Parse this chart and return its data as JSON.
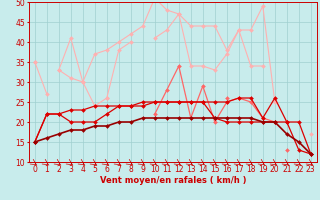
{
  "x": [
    0,
    1,
    2,
    3,
    4,
    5,
    6,
    7,
    8,
    9,
    10,
    11,
    12,
    13,
    14,
    15,
    16,
    17,
    18,
    19,
    20,
    21,
    22,
    23
  ],
  "series": [
    {
      "color": "#FFB0B0",
      "lw": 0.8,
      "ms": 2.0,
      "y": [
        35,
        27,
        null,
        null,
        null,
        null,
        null,
        null,
        null,
        null,
        null,
        null,
        null,
        null,
        null,
        null,
        null,
        null,
        null,
        null,
        null,
        null,
        null,
        null
      ]
    },
    {
      "color": "#FFB0B0",
      "lw": 0.8,
      "ms": 2.0,
      "y": [
        null,
        null,
        33,
        41,
        30,
        37,
        38,
        40,
        42,
        44,
        51,
        48,
        47,
        44,
        44,
        44,
        38,
        43,
        43,
        49,
        25,
        null,
        null,
        null
      ]
    },
    {
      "color": "#FFB0B0",
      "lw": 0.8,
      "ms": 2.0,
      "y": [
        null,
        null,
        33,
        31,
        30,
        24,
        26,
        null,
        null,
        null,
        null,
        null,
        null,
        null,
        null,
        null,
        null,
        null,
        null,
        null,
        null,
        null,
        null,
        null
      ]
    },
    {
      "color": "#FFB0B0",
      "lw": 0.8,
      "ms": 2.0,
      "y": [
        null,
        null,
        null,
        null,
        null,
        null,
        26,
        38,
        40,
        null,
        41,
        43,
        47,
        34,
        34,
        33,
        37,
        43,
        34,
        34,
        null,
        null,
        null,
        null
      ]
    },
    {
      "color": "#FFB0B0",
      "lw": 0.8,
      "ms": 2.0,
      "y": [
        35,
        null,
        null,
        null,
        null,
        null,
        null,
        null,
        null,
        null,
        null,
        null,
        null,
        null,
        null,
        null,
        null,
        null,
        null,
        null,
        null,
        null,
        null,
        17
      ]
    },
    {
      "color": "#FF6666",
      "lw": 0.9,
      "ms": 2.0,
      "y": [
        null,
        null,
        null,
        null,
        null,
        null,
        null,
        null,
        null,
        null,
        22,
        28,
        34,
        21,
        29,
        20,
        25,
        26,
        25,
        21,
        20,
        null,
        null,
        null
      ]
    },
    {
      "color": "#FF6666",
      "lw": 0.9,
      "ms": 2.0,
      "y": [
        null,
        null,
        null,
        null,
        null,
        null,
        null,
        null,
        null,
        null,
        null,
        null,
        null,
        null,
        null,
        null,
        26,
        null,
        null,
        null,
        null,
        13,
        null,
        null
      ]
    },
    {
      "color": "#DD0000",
      "lw": 0.9,
      "ms": 2.0,
      "y": [
        15,
        22,
        22,
        20,
        20,
        20,
        22,
        24,
        24,
        24,
        25,
        25,
        25,
        25,
        25,
        21,
        20,
        20,
        20,
        20,
        20,
        20,
        13,
        12
      ]
    },
    {
      "color": "#DD0000",
      "lw": 0.9,
      "ms": 2.0,
      "y": [
        15,
        22,
        22,
        23,
        23,
        24,
        24,
        24,
        24,
        25,
        25,
        25,
        25,
        25,
        25,
        25,
        25,
        26,
        26,
        21,
        26,
        20,
        20,
        12
      ]
    },
    {
      "color": "#990000",
      "lw": 1.2,
      "ms": 2.0,
      "y": [
        15,
        16,
        17,
        18,
        18,
        19,
        19,
        20,
        20,
        21,
        21,
        21,
        21,
        21,
        21,
        21,
        21,
        21,
        21,
        20,
        20,
        17,
        15,
        12
      ]
    }
  ],
  "ylim": [
    10,
    50
  ],
  "yticks": [
    10,
    15,
    20,
    25,
    30,
    35,
    40,
    45,
    50
  ],
  "xlim": [
    -0.5,
    23.5
  ],
  "xlabel": "Vent moyen/en rafales ( km/h )",
  "xlabel_color": "#CC0000",
  "xlabel_fontsize": 6,
  "bg_color": "#C8ECEC",
  "grid_color": "#A0D0D0",
  "tick_color": "#CC0000",
  "tick_fontsize": 5.5,
  "arrow_color": "#CC0000"
}
